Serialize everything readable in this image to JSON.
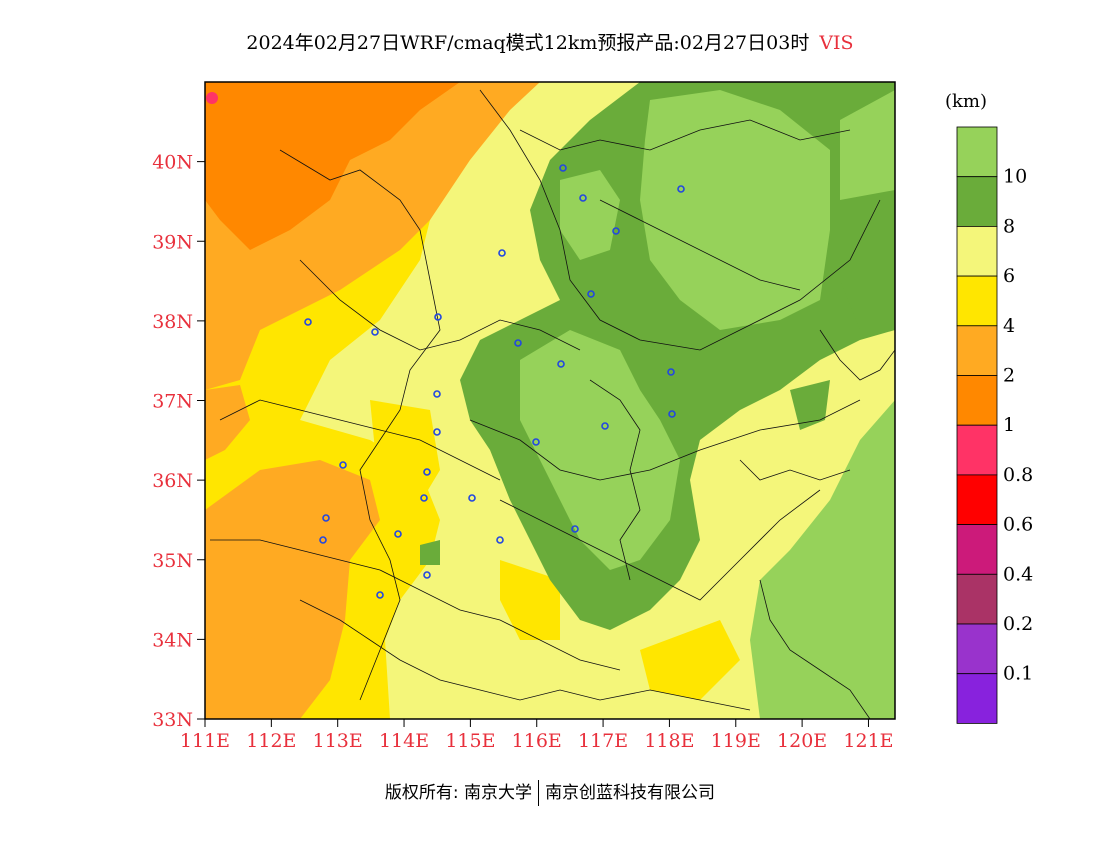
{
  "title": {
    "main": "2024年02月27日WRF/cmaq模式12km预报产品:02月27日03时",
    "variable": "VIS"
  },
  "map": {
    "lon_range": [
      111,
      121.4
    ],
    "lat_range": [
      33,
      41
    ],
    "x_ticks": [
      "111E",
      "112E",
      "113E",
      "114E",
      "115E",
      "116E",
      "117E",
      "118E",
      "119E",
      "120E",
      "121E"
    ],
    "y_ticks": [
      "33N",
      "34N",
      "35N",
      "36N",
      "37N",
      "38N",
      "39N",
      "40N"
    ],
    "label_color": "#e8303c"
  },
  "colorbar": {
    "unit": "(km)",
    "colors": [
      "#96d25a",
      "#6aac3a",
      "#f4f67a",
      "#ffe600",
      "#ffaa22",
      "#ff8800",
      "#ff3366",
      "#ff0000",
      "#cc1a7a",
      "#aa3366",
      "#9933cc",
      "#8822dd"
    ],
    "labels": [
      "10",
      "8",
      "6",
      "4",
      "2",
      "1",
      "0.8",
      "0.6",
      "0.4",
      "0.2",
      "0.1"
    ]
  },
  "footer": {
    "copyright": "版权所有: 南京大学",
    "company": "南京创蓝科技有限公司"
  }
}
